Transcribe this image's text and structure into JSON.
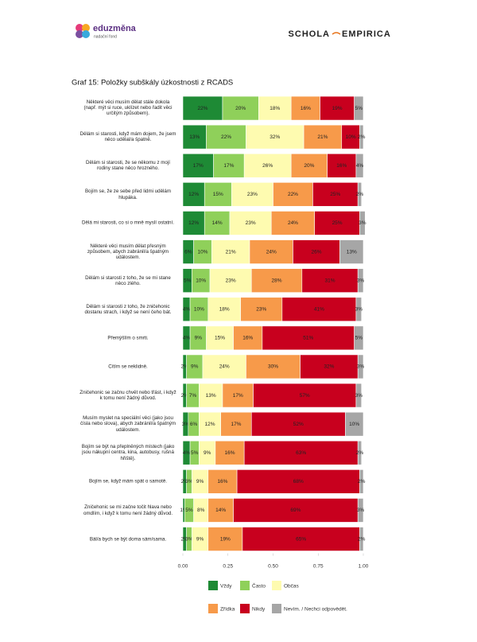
{
  "header": {
    "logo_left": "eduzměna",
    "logo_left_sub": "nadační fond",
    "logo_right_a": "SCHOLA",
    "logo_right_b": "EMPIRICA"
  },
  "chart_data": {
    "type": "stacked-barh",
    "title": "Graf 15: Položky subškály úzkostnosti z RCADS",
    "categories": [
      "Některé věci musím dělat stále dokola (např. mýt si ruce, uklízet nebo řadit věci určitým způsobem).",
      "Dělám si starosti, když mám dojem, že jsem něco udělal/a špatně.",
      "Dělám si starosti, že se někomu z mojí rodiny stane něco hrozného.",
      "Bojím se, že ze sebe před lidmi udělám hlupáka.",
      "Dělá mi starosti, co si o mně myslí ostatní.",
      "Některé věci musím dělat přesným způsobem, abych zabránil/a špatným událostem.",
      "Dělám si starosti z toho, že se mi stane něco zlého.",
      "Dělám si starosti z toho, že zničehonic dostanu strach, i když se není čeho bát.",
      "Přemýšlím o smrti.",
      "Cítím se neklidně.",
      "Zničehonic se začnu chvět nebo třást, i když k tomu není žádný důvod.",
      "Musím myslet na speciální věci (jako jsou čísla nebo slova), abych zabránil/a špatným událostem.",
      "Bojím se být na přeplněných místech (jako jsou nákupní centra, kina, autobusy, rušná hřiště).",
      "Bojím se, když mám spát o samotě.",
      "Zničehonic se mi začne točit hlava nebo omdlím, i když k tomu není žádný důvod.",
      "Bál/a bych se být doma sám/sama."
    ],
    "series": [
      {
        "name": "Vždy",
        "color": "#1e8a35",
        "values": [
          0.22,
          0.13,
          0.17,
          0.12,
          0.12,
          0.06,
          0.05,
          0.04,
          0.04,
          0.02,
          0.02,
          0.03,
          0.04,
          0.02,
          0.01,
          0.02
        ],
        "value_labels": [
          "22%",
          "13%",
          "17%",
          "12%",
          "12%",
          "6%",
          "5%",
          "4%",
          "4%",
          "2%",
          "2%",
          "3%",
          "4%",
          "2%",
          "1%",
          "2%"
        ]
      },
      {
        "name": "Často",
        "color": "#8fd05a",
        "values": [
          0.2,
          0.22,
          0.17,
          0.15,
          0.14,
          0.1,
          0.1,
          0.1,
          0.09,
          0.09,
          0.07,
          0.06,
          0.05,
          0.03,
          0.05,
          0.03
        ],
        "value_labels": [
          "20%",
          "22%",
          "17%",
          "15%",
          "14%",
          "10%",
          "10%",
          "10%",
          "9%",
          "9%",
          "7%",
          "6%",
          "5%",
          "3%",
          "5%",
          "3%"
        ]
      },
      {
        "name": "Občas",
        "color": "#fefbb0",
        "values": [
          0.18,
          0.32,
          0.26,
          0.23,
          0.23,
          0.21,
          0.23,
          0.18,
          0.15,
          0.24,
          0.13,
          0.12,
          0.09,
          0.09,
          0.08,
          0.09
        ],
        "value_labels": [
          "18%",
          "32%",
          "26%",
          "23%",
          "23%",
          "21%",
          "23%",
          "18%",
          "15%",
          "24%",
          "13%",
          "12%",
          "9%",
          "9%",
          "8%",
          "9%"
        ]
      },
      {
        "name": "Zřídka",
        "color": "#f79a4a",
        "values": [
          0.16,
          0.21,
          0.2,
          0.22,
          0.24,
          0.24,
          0.28,
          0.23,
          0.16,
          0.3,
          0.17,
          0.17,
          0.16,
          0.16,
          0.14,
          0.19
        ],
        "value_labels": [
          "16%",
          "21%",
          "20%",
          "22%",
          "24%",
          "24%",
          "28%",
          "23%",
          "16%",
          "30%",
          "17%",
          "17%",
          "16%",
          "16%",
          "14%",
          "19%"
        ]
      },
      {
        "name": "Nikdy",
        "color": "#c8001e",
        "values": [
          0.19,
          0.1,
          0.16,
          0.25,
          0.25,
          0.26,
          0.31,
          0.41,
          0.51,
          0.32,
          0.57,
          0.52,
          0.63,
          0.68,
          0.69,
          0.65
        ],
        "value_labels": [
          "19%",
          "10%",
          "16%",
          "25%",
          "25%",
          "26%",
          "31%",
          "41%",
          "51%",
          "32%",
          "57%",
          "52%",
          "63%",
          "68%",
          "69%",
          "65%"
        ]
      },
      {
        "name": "Nevím. / Nechci odpovědět.",
        "color": "#a6a6a6",
        "values": [
          0.05,
          0.02,
          0.04,
          0.02,
          0.03,
          0.13,
          0.03,
          0.03,
          0.05,
          0.03,
          0.03,
          0.1,
          0.02,
          0.02,
          0.03,
          0.02
        ],
        "value_labels": [
          "5%",
          "2%",
          "4%",
          "2%",
          "3%",
          "13%",
          "3%",
          "3%",
          "5%",
          "3%",
          "3%",
          "10%",
          "2%",
          "2%",
          "3%",
          "2%"
        ]
      }
    ],
    "xlim": [
      0,
      1
    ],
    "xticks": [
      {
        "value": 0,
        "label": "0.00"
      },
      {
        "value": 0.25,
        "label": "0.25"
      },
      {
        "value": 0.5,
        "label": "0.50"
      },
      {
        "value": 0.75,
        "label": "0.75"
      },
      {
        "value": 1,
        "label": "1.00"
      }
    ],
    "legend": "bottom"
  }
}
